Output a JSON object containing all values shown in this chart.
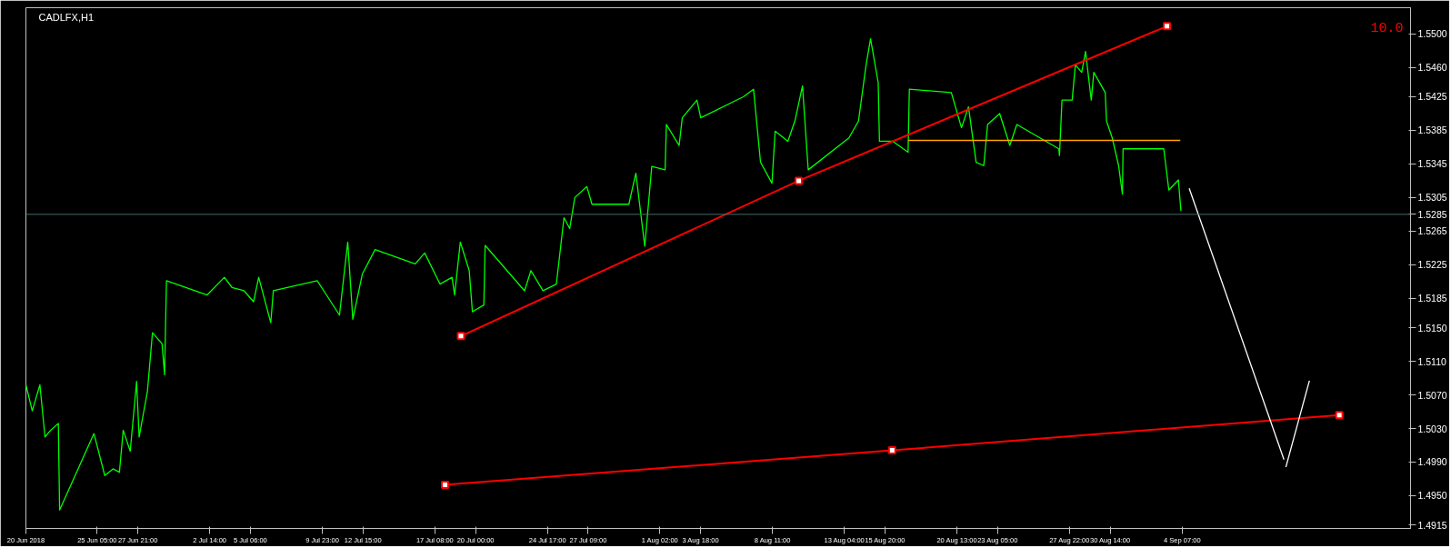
{
  "chart_data": {
    "type": "line",
    "title": "CADLFX,H1",
    "xlim": [
      "2018-06-20T13:00",
      "2018-09-19T06:00"
    ],
    "ylim": [
      1.4911,
      1.5531
    ],
    "xticks": [
      {
        "value": "2018-06-20T13:00",
        "label": "20 Jun 2018"
      },
      {
        "value": "2018-06-25T05:00",
        "label": "25 Jun 05:00"
      },
      {
        "value": "2018-06-27T21:00",
        "label": "27 Jun 21:00"
      },
      {
        "value": "2018-07-02T14:00",
        "label": "2 Jul 14:00"
      },
      {
        "value": "2018-07-05T06:00",
        "label": "5 Jul 06:00"
      },
      {
        "value": "2018-07-09T23:00",
        "label": "9 Jul 23:00"
      },
      {
        "value": "2018-07-12T15:00",
        "label": "12 Jul 15:00"
      },
      {
        "value": "2018-07-17T08:00",
        "label": "17 Jul 08:00"
      },
      {
        "value": "2018-07-20T00:00",
        "label": "20 Jul 00:00"
      },
      {
        "value": "2018-07-24T17:00",
        "label": "24 Jul 17:00"
      },
      {
        "value": "2018-07-27T09:00",
        "label": "27 Jul 09:00"
      },
      {
        "value": "2018-08-01T02:00",
        "label": "1 Aug 02:00"
      },
      {
        "value": "2018-08-03T18:00",
        "label": "3 Aug 18:00"
      },
      {
        "value": "2018-08-08T11:00",
        "label": "8 Aug 11:00"
      },
      {
        "value": "2018-08-13T04:00",
        "label": "13 Aug 04:00"
      },
      {
        "value": "2018-08-15T20:00",
        "label": "15 Aug 20:00"
      },
      {
        "value": "2018-08-20T13:00",
        "label": "20 Aug 13:00"
      },
      {
        "value": "2018-08-23T05:00",
        "label": "23 Aug 05:00"
      },
      {
        "value": "2018-08-27T22:00",
        "label": "27 Aug 22:00"
      },
      {
        "value": "2018-08-30T14:00",
        "label": "30 Aug 14:00"
      },
      {
        "value": "2018-09-04T07:00",
        "label": "4 Sep 07:00"
      }
    ],
    "yticks": [
      {
        "value": 1.55,
        "label": "1.5500"
      },
      {
        "value": 1.546,
        "label": "1.5460"
      },
      {
        "value": 1.5425,
        "label": "1.5425"
      },
      {
        "value": 1.5385,
        "label": "1.5385"
      },
      {
        "value": 1.5345,
        "label": "1.5345"
      },
      {
        "value": 1.5305,
        "label": "1.5305"
      },
      {
        "value": 1.5265,
        "label": "1.5265"
      },
      {
        "value": 1.5225,
        "label": "1.5225"
      },
      {
        "value": 1.5185,
        "label": "1.5185"
      },
      {
        "value": 1.515,
        "label": "1.5150"
      },
      {
        "value": 1.511,
        "label": "1.5110"
      },
      {
        "value": 1.507,
        "label": "1.5070"
      },
      {
        "value": 1.503,
        "label": "1.5030"
      },
      {
        "value": 1.499,
        "label": "1.4990"
      },
      {
        "value": 1.495,
        "label": "1.4950"
      },
      {
        "value": 1.4915,
        "label": "1.4915"
      }
    ],
    "grid": false,
    "ref_lines": [
      {
        "axis": "y",
        "value": 1.5285,
        "label": "1.5285",
        "color": "#4a6b6b"
      }
    ],
    "annotations": [
      "10.0"
    ],
    "series": [
      {
        "color": "#00ff00",
        "x": [
          "2018-06-20T13:00",
          "2018-06-20T23:00",
          "2018-06-21T11:00",
          "2018-06-21T19:00",
          "2018-06-22T04:00",
          "2018-06-22T16:00",
          "2018-06-22T18:00",
          "2018-06-25T00:00",
          "2018-06-25T17:00",
          "2018-06-26T06:00",
          "2018-06-26T16:00",
          "2018-06-26T22:00",
          "2018-06-27T09:00",
          "2018-06-27T19:00",
          "2018-06-27T23:00",
          "2018-06-28T12:00",
          "2018-06-28T20:00",
          "2018-06-29T11:00",
          "2018-06-29T15:00",
          "2018-06-29T18:00",
          "2018-07-02T10:00",
          "2018-07-03T13:00",
          "2018-07-04T01:00",
          "2018-07-04T20:00",
          "2018-07-05T11:00",
          "2018-07-05T19:00",
          "2018-07-06T14:00",
          "2018-07-06T18:00",
          "2018-07-09T15:00",
          "2018-07-10T09:00",
          "2018-07-11T02:00",
          "2018-07-11T15:00",
          "2018-07-11T23:00",
          "2018-07-12T14:00",
          "2018-07-13T10:00",
          "2018-07-16T01:00",
          "2018-07-16T16:00",
          "2018-07-17T16:00",
          "2018-07-18T11:00",
          "2018-07-18T15:00",
          "2018-07-19T00:00",
          "2018-07-19T14:00",
          "2018-07-19T19:00",
          "2018-07-20T13:00",
          "2018-07-20T15:00",
          "2018-07-23T05:00",
          "2018-07-23T15:00",
          "2018-07-24T10:00",
          "2018-07-25T07:00",
          "2018-07-25T19:00",
          "2018-07-26T04:00",
          "2018-07-26T12:00",
          "2018-07-27T07:00",
          "2018-07-27T15:00",
          "2018-07-30T01:00",
          "2018-07-30T12:00",
          "2018-07-31T02:00",
          "2018-07-31T13:00",
          "2018-08-01T10:00",
          "2018-08-01T12:00",
          "2018-08-02T08:00",
          "2018-08-02T13:00",
          "2018-08-03T12:00",
          "2018-08-03T18:00",
          "2018-08-06T13:00",
          "2018-08-07T05:00",
          "2018-08-07T16:00",
          "2018-08-08T10:00",
          "2018-08-08T15:00",
          "2018-08-09T11:00",
          "2018-08-09T22:00",
          "2018-08-10T10:00",
          "2018-08-10T19:00",
          "2018-08-13T11:00",
          "2018-08-14T02:00",
          "2018-08-14T14:00",
          "2018-08-14T21:00",
          "2018-08-15T09:00",
          "2018-08-15T11:00",
          "2018-08-16T08:00",
          "2018-08-17T08:00",
          "2018-08-17T10:00",
          "2018-08-20T04:00",
          "2018-08-20T20:00",
          "2018-08-21T07:00",
          "2018-08-21T19:00",
          "2018-08-22T07:00",
          "2018-08-22T13:00",
          "2018-08-23T08:00",
          "2018-08-24T00:00",
          "2018-08-24T11:00",
          "2018-08-27T05:00",
          "2018-08-27T06:00",
          "2018-08-27T10:00",
          "2018-08-28T02:00",
          "2018-08-28T07:00",
          "2018-08-28T17:00",
          "2018-08-28T23:00",
          "2018-08-29T08:00",
          "2018-08-29T12:00",
          "2018-08-30T06:00",
          "2018-08-30T08:00",
          "2018-08-30T17:00",
          "2018-08-31T03:00",
          "2018-08-31T09:00",
          "2018-08-31T10:00",
          "2018-09-03T02:00",
          "2018-09-03T10:00",
          "2018-09-04T01:00",
          "2018-09-04T05:00"
        ],
        "values": [
          1.5082,
          1.5051,
          1.5082,
          1.502,
          1.5028,
          1.5036,
          1.4933,
          1.5024,
          1.4974,
          1.4982,
          1.4978,
          1.5028,
          1.5003,
          1.5086,
          1.502,
          1.5074,
          1.5144,
          1.5131,
          1.5094,
          1.5206,
          1.5189,
          1.521,
          1.5198,
          1.5194,
          1.5181,
          1.521,
          1.5156,
          1.5194,
          1.5206,
          1.5185,
          1.5165,
          1.5252,
          1.516,
          1.5214,
          1.5243,
          1.5226,
          1.5239,
          1.5202,
          1.521,
          1.5189,
          1.5252,
          1.5218,
          1.5169,
          1.5177,
          1.5248,
          1.5194,
          1.5218,
          1.5194,
          1.5202,
          1.5281,
          1.5268,
          1.5305,
          1.5318,
          1.5297,
          1.5297,
          1.5334,
          1.5247,
          1.5342,
          1.5338,
          1.5392,
          1.5367,
          1.54,
          1.5421,
          1.54,
          1.5425,
          1.5434,
          1.5347,
          1.5322,
          1.5384,
          1.5372,
          1.5396,
          1.5438,
          1.5338,
          1.5376,
          1.5396,
          1.5463,
          1.5494,
          1.5442,
          1.5372,
          1.5372,
          1.5359,
          1.5434,
          1.543,
          1.5388,
          1.5413,
          1.5347,
          1.5343,
          1.5392,
          1.5405,
          1.5367,
          1.5392,
          1.5363,
          1.5355,
          1.5421,
          1.5421,
          1.5463,
          1.5454,
          1.5479,
          1.5421,
          1.5454,
          1.543,
          1.5396,
          1.5376,
          1.5343,
          1.5309,
          1.5363,
          1.5363,
          1.5314,
          1.5326,
          1.5289
        ]
      },
      {
        "color": "#ff0000",
        "marker": "square",
        "x": [
          "2018-07-19T01:00",
          "2018-08-10T04:00",
          "2018-09-03T07:00"
        ],
        "values": [
          1.514,
          1.5325,
          1.5509
        ]
      },
      {
        "color": "#ff0000",
        "marker": "square",
        "x": [
          "2018-07-18T00:00",
          "2018-08-16T07:00",
          "2018-09-14T14:00"
        ],
        "values": [
          1.4963,
          1.5004,
          1.5046
        ]
      },
      {
        "color": "#ffa500",
        "x": [
          "2018-08-17T08:00",
          "2018-09-04T04:00"
        ],
        "values": [
          1.5373,
          1.5373
        ]
      },
      {
        "color": "#ffffff",
        "x": [
          "2018-09-04T18:00",
          "2018-09-10T23:00"
        ],
        "values": [
          1.5316,
          1.4993
        ]
      },
      {
        "color": "#ffffff",
        "x": [
          "2018-09-11T02:00",
          "2018-09-12T15:00"
        ],
        "values": [
          1.4984,
          1.5087
        ]
      }
    ]
  }
}
